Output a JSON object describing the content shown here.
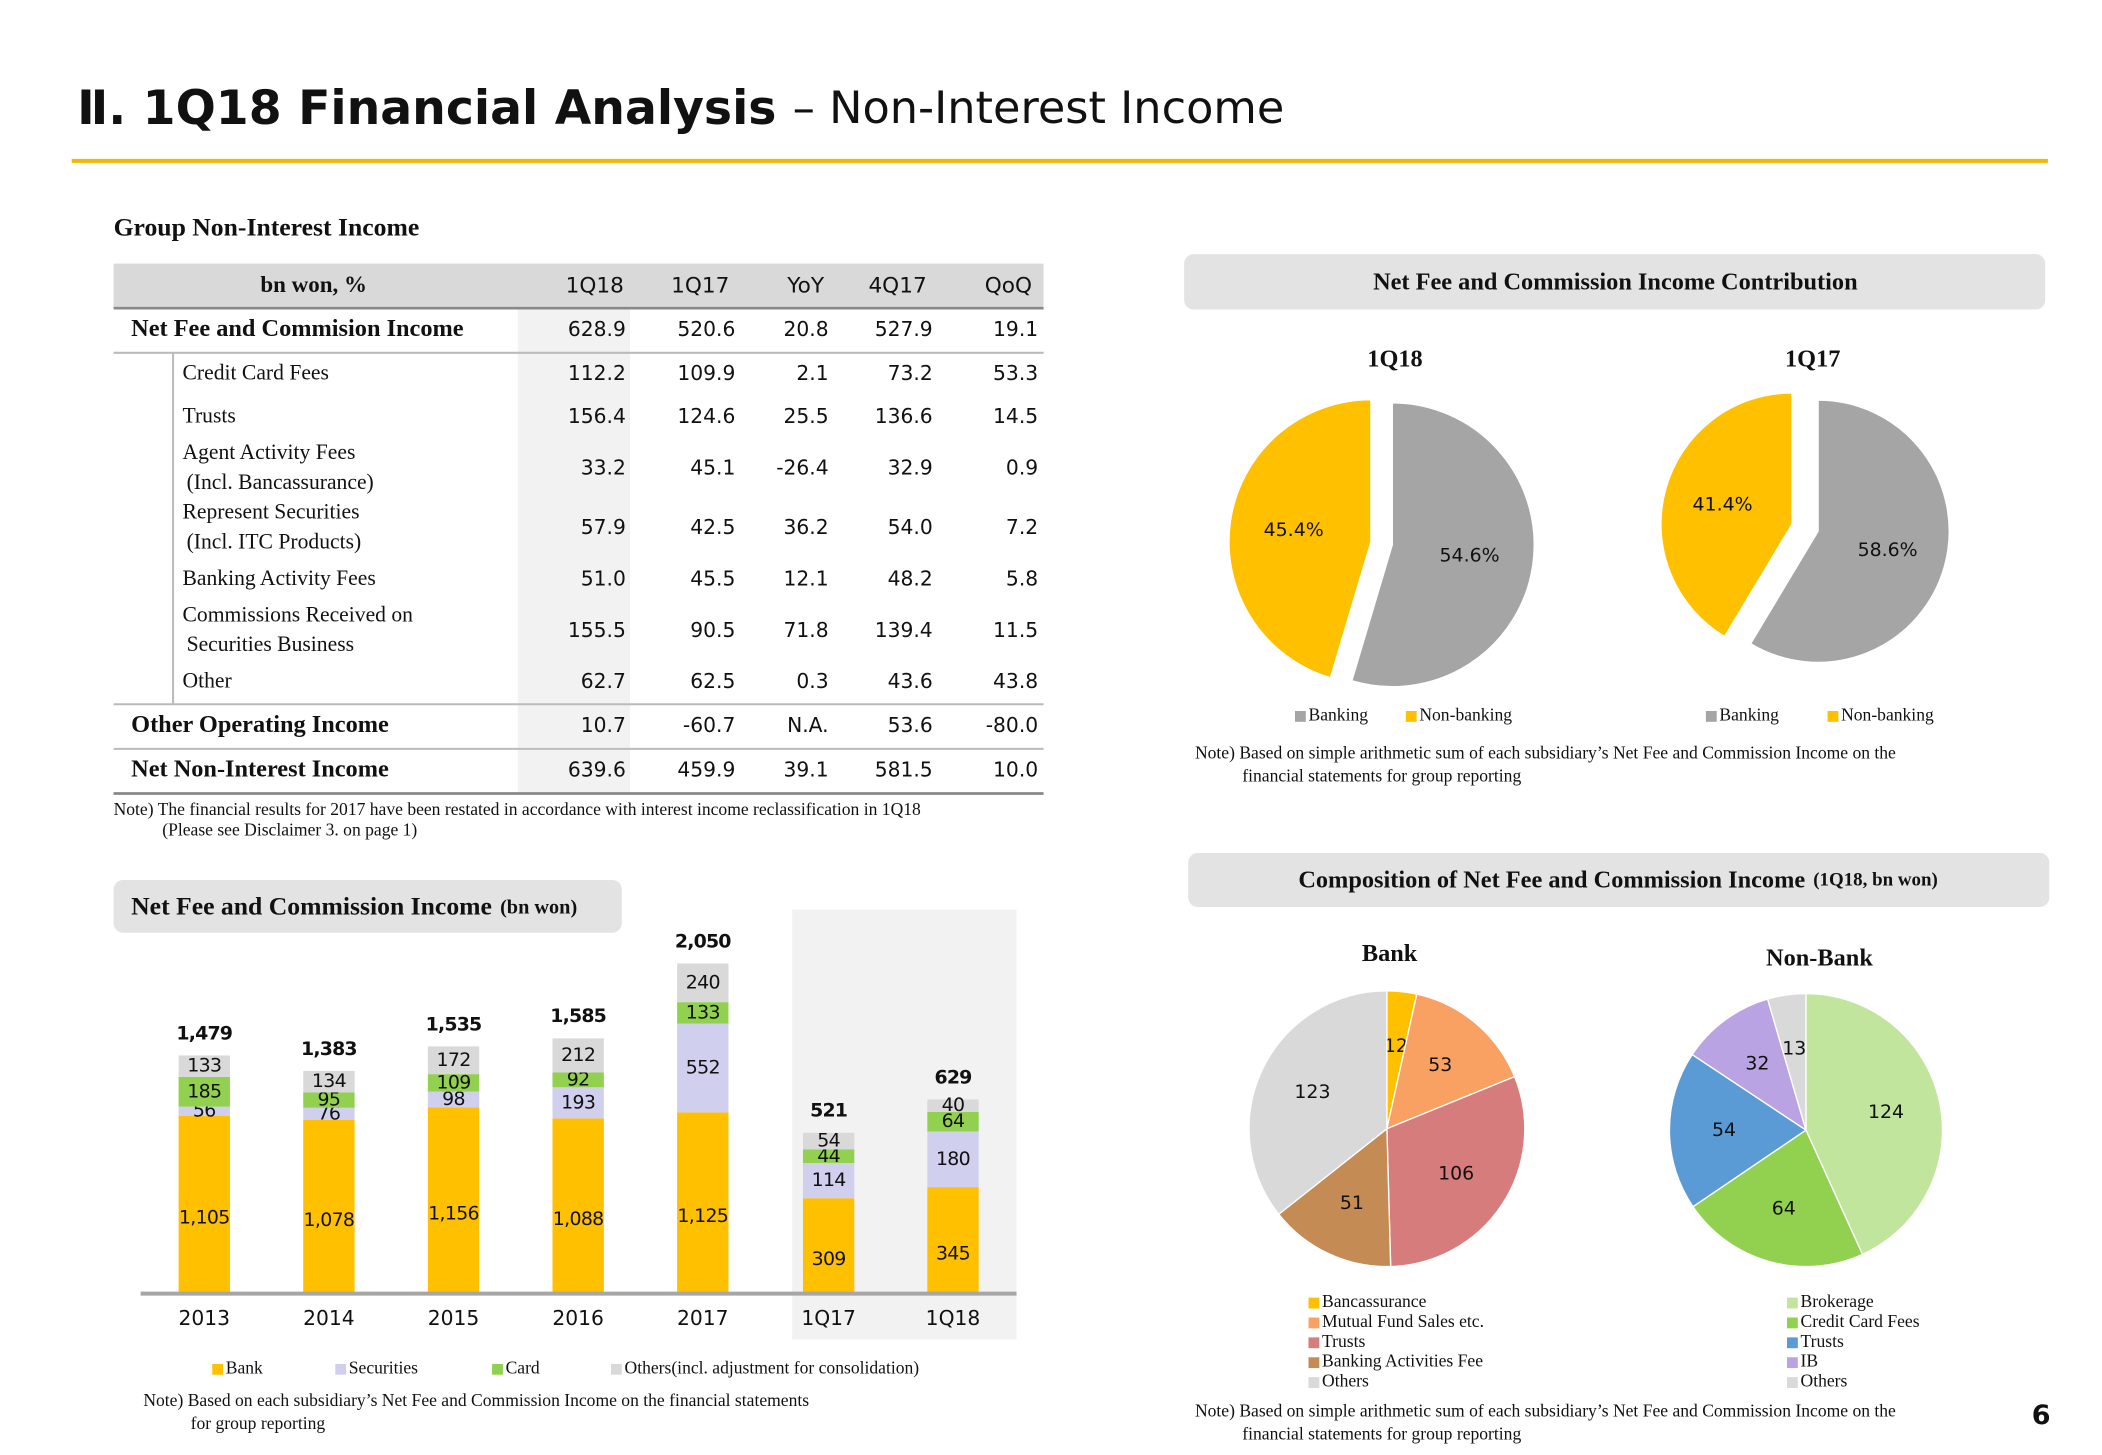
{
  "header": {
    "title": "Ⅱ. 1Q18 Financial Analysis",
    "subtitle": "– Non-Interest Income"
  },
  "table": {
    "title": "Group Non-Interest Income",
    "columns": [
      "bn won, %",
      "1Q18",
      "1Q17",
      "YoY",
      "4Q17",
      "QoQ"
    ],
    "rows": [
      {
        "label": [
          "Net Fee and Commision Income"
        ],
        "values": [
          "628.9",
          "520.6",
          "20.8",
          "527.9",
          "19.1"
        ],
        "items": [
          {
            "label": [
              "Credit Card Fees"
            ],
            "values": [
              "112.2",
              "109.9",
              "2.1",
              "73.2",
              "53.3"
            ]
          },
          {
            "label": [
              "Trusts"
            ],
            "values": [
              "156.4",
              "124.6",
              "25.5",
              "136.6",
              "14.5"
            ]
          },
          {
            "label": [
              "Agent Activity Fees",
              "(Incl. Bancassurance)"
            ],
            "values": [
              "33.2",
              "45.1",
              "-26.4",
              "32.9",
              "0.9"
            ]
          },
          {
            "label": [
              "Represent Securities",
              "(Incl. ITC Products)"
            ],
            "values": [
              "57.9",
              "42.5",
              "36.2",
              "54.0",
              "7.2"
            ]
          },
          {
            "label": [
              "Banking Activity Fees"
            ],
            "values": [
              "51.0",
              "45.5",
              "12.1",
              "48.2",
              "5.8"
            ]
          },
          {
            "label": [
              "Commissions Received on",
              "Securities Business"
            ],
            "values": [
              "155.5",
              "90.5",
              "71.8",
              "139.4",
              "11.5"
            ]
          },
          {
            "label": [
              "Other"
            ],
            "values": [
              "62.7",
              "62.5",
              "0.3",
              "43.6",
              "43.8"
            ]
          }
        ]
      },
      {
        "label": [
          "Other Operating Income"
        ],
        "values": [
          "10.7",
          "-60.7",
          "N.A.",
          "53.6",
          "-80.0"
        ]
      },
      {
        "label": [
          "Net Non-Interest Income"
        ],
        "values": [
          "639.6",
          "459.9",
          "39.1",
          "581.5",
          "10.0"
        ]
      }
    ],
    "note": [
      "Note) The financial results for 2017 have been restated in accordance with interest income reclassification in 1Q18",
      "(Please see Disclaimer 3. on page 1)"
    ]
  },
  "chart_data": [
    {
      "type": "pie",
      "title": "Net Fee and Commission Income Contribution",
      "categories": [
        "Banking",
        "Non-banking"
      ],
      "colors": [
        "#a5a5a5",
        "#ffc000"
      ],
      "pies": [
        {
          "title": "1Q18",
          "values": [
            54.6,
            45.4
          ],
          "value_labels": [
            "54.6%",
            "45.4%"
          ]
        },
        {
          "title": "1Q17",
          "values": [
            58.6,
            41.4
          ],
          "value_labels": [
            "58.6%",
            "41.4%"
          ]
        }
      ],
      "note": [
        "Note) Based on simple arithmetic sum of each subsidiary’s Net Fee and Commission Income on the",
        "financial statements for group reporting"
      ]
    },
    {
      "type": "stacked_bar",
      "title": "Net Fee and Commission Income",
      "subtitle": "(bn won)",
      "series": [
        {
          "name": "Bank",
          "color": "#ffc000"
        },
        {
          "name": "Securities",
          "color": "#d0cfee"
        },
        {
          "name": "Card",
          "color": "#92d050"
        },
        {
          "name": "Others(incl. adjustment for consolidation)",
          "color": "#d9d9d9"
        }
      ],
      "panels": [
        {
          "categories": [
            "2013",
            "2014",
            "2015",
            "2016",
            "2017"
          ],
          "ylim": [
            0,
            2300
          ],
          "series": [
            {
              "values": [
                1105,
                1078,
                1156,
                1088,
                1125
              ],
              "value_labels": [
                "1,105",
                "1,078",
                "1,156",
                "1,088",
                "1,125"
              ]
            },
            {
              "values": [
                56,
                76,
                98,
                193,
                552
              ]
            },
            {
              "values": [
                185,
                95,
                109,
                92,
                133
              ]
            },
            {
              "values": [
                133,
                134,
                172,
                212,
                240
              ]
            }
          ],
          "totals": [
            1479,
            1383,
            1535,
            1585,
            2050
          ],
          "totals_labels": [
            "1,479",
            "1,383",
            "1,535",
            "1,585",
            "2,050"
          ]
        },
        {
          "categories": [
            "1Q17",
            "1Q18"
          ],
          "ylim": [
            0,
            1200
          ],
          "series": [
            {
              "values": [
                309,
                345
              ]
            },
            {
              "values": [
                114,
                180
              ]
            },
            {
              "values": [
                44,
                64
              ]
            },
            {
              "values": [
                54,
                40
              ]
            }
          ],
          "totals": [
            521,
            629
          ]
        }
      ],
      "note": [
        "Note) Based on each subsidiary’s Net Fee and Commission Income on the financial statements",
        "for group reporting"
      ]
    },
    {
      "type": "pie",
      "title": "Composition of Net Fee and Commission Income",
      "subtitle": "(1Q18, bn won)",
      "pies": [
        {
          "title": "Bank",
          "categories": [
            "Bancassurance",
            "Mutual Fund Sales etc.",
            "Trusts",
            "Banking Activities Fee",
            "Others"
          ],
          "colors": [
            "#ffc000",
            "#f9a063",
            "#d77c7c",
            "#c48b55",
            "#d9d9d9"
          ],
          "values": [
            12,
            53,
            106,
            51,
            123
          ]
        },
        {
          "title": "Non-Bank",
          "categories": [
            "Brokerage",
            "Credit Card Fees",
            "Trusts",
            "IB",
            "Others"
          ],
          "colors": [
            "#c2e59e",
            "#92d050",
            "#5b9bd5",
            "#b9a3e3",
            "#d9d9d9"
          ],
          "values": [
            124,
            64,
            54,
            32,
            13
          ]
        }
      ],
      "note": [
        "Note) Based on simple arithmetic sum of each subsidiary’s Net Fee and Commission Income on the",
        "financial statements for group reporting"
      ]
    }
  ],
  "page_number": "6"
}
